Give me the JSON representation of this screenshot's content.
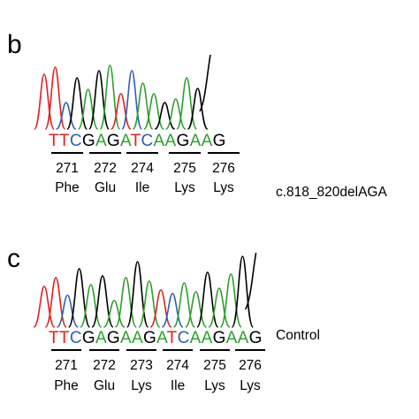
{
  "colors": {
    "A": "#2ca02c",
    "C": "#2f5db8",
    "G": "#000000",
    "T": "#e02020"
  },
  "panels": [
    {
      "id": "b",
      "label": "b",
      "sequence": "TTCGAGATCAAGAAG",
      "codons": [
        {
          "num": "271",
          "aa": "Phe"
        },
        {
          "num": "272",
          "aa": "Glu"
        },
        {
          "num": "274",
          "aa": "Ile"
        },
        {
          "num": "275",
          "aa": "Lys"
        },
        {
          "num": "276",
          "aa": "Lys"
        }
      ],
      "note": "c.818_820delAGA"
    },
    {
      "id": "c",
      "label": "c",
      "sequence": "TTCGAGAAGATCAAGAAG",
      "codons": [
        {
          "num": "271",
          "aa": "Phe"
        },
        {
          "num": "272",
          "aa": "Glu"
        },
        {
          "num": "273",
          "aa": "Lys"
        },
        {
          "num": "274",
          "aa": "Ile"
        },
        {
          "num": "275",
          "aa": "Lys"
        },
        {
          "num": "276",
          "aa": "Lys"
        }
      ],
      "note": "Control"
    }
  ]
}
